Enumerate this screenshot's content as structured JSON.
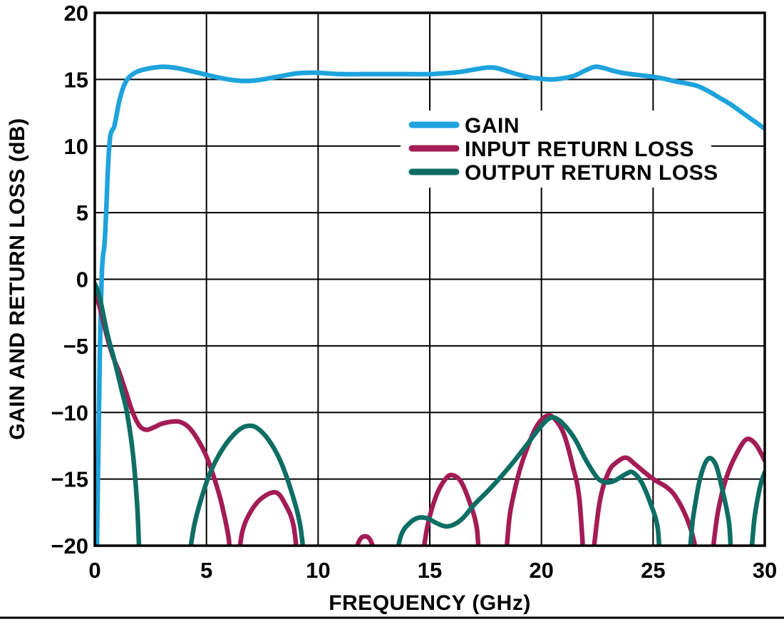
{
  "figure": {
    "background_color": "#FFFFFF",
    "axis_color": "#000000",
    "grid_color": "#000000",
    "bottom_rule_color": "#000000"
  },
  "chart_data": {
    "type": "line",
    "title": "",
    "xlabel": "FREQUENCY (GHz)",
    "ylabel": "GAIN AND RETURN LOSS (dB)",
    "xlim": [
      0,
      30
    ],
    "ylim": [
      -20,
      20
    ],
    "x_ticks": [
      0,
      5,
      10,
      15,
      20,
      25,
      30
    ],
    "x_tick_labels": [
      "0",
      "5",
      "10",
      "15",
      "20",
      "25",
      "30"
    ],
    "y_ticks": [
      20,
      15,
      10,
      5,
      0,
      -5,
      -10,
      -15,
      -20
    ],
    "y_tick_labels": [
      "20",
      "15",
      "10",
      "5",
      "0",
      "−5",
      "−10",
      "−15",
      "−20"
    ],
    "grid": true,
    "legend_position": "inside-upper-middle",
    "legend": [
      "GAIN",
      "INPUT RETURN LOSS",
      "OUTPUT RETURN LOSS"
    ],
    "series": [
      {
        "name": "GAIN",
        "color": "#1EA3DC",
        "points": [
          [
            0.1,
            -20
          ],
          [
            0.13,
            -16
          ],
          [
            0.18,
            -11
          ],
          [
            0.22,
            -6
          ],
          [
            0.27,
            -2
          ],
          [
            0.32,
            0.6
          ],
          [
            0.37,
            1.8
          ],
          [
            0.42,
            2.4
          ],
          [
            0.47,
            3.6
          ],
          [
            0.52,
            5.5
          ],
          [
            0.58,
            8
          ],
          [
            0.64,
            9.8
          ],
          [
            0.7,
            10.8
          ],
          [
            0.78,
            11.2
          ],
          [
            0.86,
            11.4
          ],
          [
            0.95,
            12.1
          ],
          [
            1.1,
            13.4
          ],
          [
            1.3,
            14.5
          ],
          [
            1.5,
            15.1
          ],
          [
            1.8,
            15.5
          ],
          [
            2.1,
            15.7
          ],
          [
            2.5,
            15.85
          ],
          [
            3,
            15.95
          ],
          [
            3.5,
            15.9
          ],
          [
            4,
            15.75
          ],
          [
            4.5,
            15.55
          ],
          [
            5,
            15.35
          ],
          [
            5.5,
            15.15
          ],
          [
            6,
            15
          ],
          [
            6.5,
            14.9
          ],
          [
            7,
            14.9
          ],
          [
            7.5,
            15
          ],
          [
            8,
            15.15
          ],
          [
            8.5,
            15.3
          ],
          [
            9,
            15.45
          ],
          [
            9.5,
            15.5
          ],
          [
            10,
            15.5
          ],
          [
            10.5,
            15.45
          ],
          [
            11,
            15.4
          ],
          [
            12,
            15.4
          ],
          [
            13,
            15.4
          ],
          [
            14,
            15.4
          ],
          [
            15,
            15.4
          ],
          [
            15.5,
            15.45
          ],
          [
            16,
            15.5
          ],
          [
            16.5,
            15.6
          ],
          [
            17,
            15.75
          ],
          [
            17.6,
            15.9
          ],
          [
            18,
            15.85
          ],
          [
            18.5,
            15.6
          ],
          [
            19,
            15.35
          ],
          [
            19.5,
            15.15
          ],
          [
            20,
            15.05
          ],
          [
            20.5,
            15
          ],
          [
            21,
            15.1
          ],
          [
            21.5,
            15.3
          ],
          [
            22,
            15.7
          ],
          [
            22.4,
            15.95
          ],
          [
            22.8,
            15.85
          ],
          [
            23.2,
            15.65
          ],
          [
            23.6,
            15.5
          ],
          [
            24,
            15.4
          ],
          [
            24.5,
            15.3
          ],
          [
            25,
            15.2
          ],
          [
            25.5,
            15.05
          ],
          [
            26,
            14.85
          ],
          [
            26.5,
            14.7
          ],
          [
            27,
            14.5
          ],
          [
            27.5,
            14.1
          ],
          [
            28,
            13.6
          ],
          [
            28.5,
            13.1
          ],
          [
            29,
            12.5
          ],
          [
            29.5,
            11.9
          ],
          [
            30,
            11.3
          ]
        ]
      },
      {
        "name": "INPUT RETURN LOSS",
        "color": "#A31C55",
        "points": [
          [
            0,
            -1
          ],
          [
            0.15,
            -1.7
          ],
          [
            0.3,
            -2.6
          ],
          [
            0.5,
            -4
          ],
          [
            0.7,
            -5.2
          ],
          [
            0.9,
            -6.2
          ],
          [
            1.1,
            -7
          ],
          [
            1.4,
            -8.5
          ],
          [
            1.7,
            -10
          ],
          [
            2,
            -11
          ],
          [
            2.3,
            -11.3
          ],
          [
            2.6,
            -11.15
          ],
          [
            3,
            -10.85
          ],
          [
            3.4,
            -10.7
          ],
          [
            3.8,
            -10.7
          ],
          [
            4.2,
            -11.1
          ],
          [
            4.6,
            -12
          ],
          [
            5,
            -13.3
          ],
          [
            5.4,
            -15.2
          ],
          [
            5.7,
            -17
          ],
          [
            6,
            -19.5
          ],
          [
            6.1,
            -22
          ],
          [
            6.35,
            -22
          ],
          [
            6.6,
            -19
          ],
          [
            7,
            -17.4
          ],
          [
            7.5,
            -16.4
          ],
          [
            8.1,
            -16
          ],
          [
            8.5,
            -16.8
          ],
          [
            8.9,
            -18.5
          ],
          [
            9.15,
            -22
          ],
          [
            9.4,
            -22.4
          ],
          [
            11.2,
            -22.4
          ],
          [
            11.45,
            -22
          ],
          [
            11.8,
            -19.8
          ],
          [
            12.1,
            -19.3
          ],
          [
            12.4,
            -19.8
          ],
          [
            12.75,
            -22
          ],
          [
            13,
            -22.4
          ],
          [
            14.3,
            -22.4
          ],
          [
            14.55,
            -22
          ],
          [
            14.9,
            -18.5
          ],
          [
            15.3,
            -16.2
          ],
          [
            15.7,
            -15
          ],
          [
            16,
            -14.7
          ],
          [
            16.4,
            -15.2
          ],
          [
            16.8,
            -16.8
          ],
          [
            17.1,
            -18.6
          ],
          [
            17.35,
            -22
          ],
          [
            18.25,
            -22
          ],
          [
            18.6,
            -17.5
          ],
          [
            19,
            -14.5
          ],
          [
            19.4,
            -12.5
          ],
          [
            19.8,
            -11
          ],
          [
            20.25,
            -10.25
          ],
          [
            20.6,
            -10.5
          ],
          [
            21,
            -11.6
          ],
          [
            21.4,
            -14
          ],
          [
            21.7,
            -16.5
          ],
          [
            21.95,
            -22
          ],
          [
            22.2,
            -22
          ],
          [
            22.6,
            -16.8
          ],
          [
            23,
            -14.5
          ],
          [
            23.4,
            -13.7
          ],
          [
            23.8,
            -13.4
          ],
          [
            24.2,
            -13.9
          ],
          [
            24.7,
            -14.6
          ],
          [
            25.1,
            -15.1
          ],
          [
            25.6,
            -15.6
          ],
          [
            26,
            -16.3
          ],
          [
            26.5,
            -17.9
          ],
          [
            26.85,
            -19.8
          ],
          [
            27,
            -22
          ],
          [
            27.5,
            -22
          ],
          [
            27.9,
            -17.5
          ],
          [
            28.3,
            -14.8
          ],
          [
            28.8,
            -12.9
          ],
          [
            29.2,
            -12
          ],
          [
            29.6,
            -12.4
          ],
          [
            30,
            -13.6
          ]
        ]
      },
      {
        "name": "OUTPUT RETURN LOSS",
        "color": "#0E6E64",
        "points": [
          [
            0,
            -0.35
          ],
          [
            0.12,
            -0.8
          ],
          [
            0.25,
            -1.6
          ],
          [
            0.4,
            -2.8
          ],
          [
            0.55,
            -4
          ],
          [
            0.7,
            -5
          ],
          [
            0.85,
            -5.9
          ],
          [
            1,
            -6.9
          ],
          [
            1.2,
            -8.3
          ],
          [
            1.44,
            -10
          ],
          [
            1.7,
            -13
          ],
          [
            1.9,
            -17
          ],
          [
            2.05,
            -22
          ],
          [
            2.3,
            -22.4
          ],
          [
            3.85,
            -22.4
          ],
          [
            4.1,
            -22
          ],
          [
            4.45,
            -18.5
          ],
          [
            4.8,
            -16.3
          ],
          [
            5.2,
            -14.4
          ],
          [
            5.7,
            -12.8
          ],
          [
            6.2,
            -11.7
          ],
          [
            6.6,
            -11.15
          ],
          [
            6.95,
            -11
          ],
          [
            7.3,
            -11.2
          ],
          [
            7.8,
            -12.1
          ],
          [
            8.3,
            -13.6
          ],
          [
            8.8,
            -15.9
          ],
          [
            9.2,
            -18.5
          ],
          [
            9.45,
            -22
          ],
          [
            9.7,
            -22.4
          ],
          [
            13.1,
            -22.4
          ],
          [
            13.35,
            -22
          ],
          [
            13.7,
            -19.3
          ],
          [
            14.1,
            -18.3
          ],
          [
            14.5,
            -17.9
          ],
          [
            14.9,
            -17.95
          ],
          [
            15.3,
            -18.3
          ],
          [
            15.7,
            -18.55
          ],
          [
            16.1,
            -18.4
          ],
          [
            16.5,
            -17.9
          ],
          [
            17,
            -16.9
          ],
          [
            17.6,
            -15.9
          ],
          [
            18.2,
            -14.8
          ],
          [
            18.8,
            -13.6
          ],
          [
            19.4,
            -12.3
          ],
          [
            19.9,
            -11.2
          ],
          [
            20.3,
            -10.5
          ],
          [
            20.6,
            -10.4
          ],
          [
            21,
            -10.9
          ],
          [
            21.5,
            -12
          ],
          [
            22,
            -13.6
          ],
          [
            22.5,
            -14.9
          ],
          [
            22.9,
            -15.25
          ],
          [
            23.3,
            -15.1
          ],
          [
            23.8,
            -14.6
          ],
          [
            24.1,
            -14.5
          ],
          [
            24.5,
            -15.3
          ],
          [
            24.9,
            -16.9
          ],
          [
            25.2,
            -18.6
          ],
          [
            25.45,
            -22
          ],
          [
            26.45,
            -22
          ],
          [
            26.8,
            -17.8
          ],
          [
            27.1,
            -15
          ],
          [
            27.45,
            -13.5
          ],
          [
            27.8,
            -13.9
          ],
          [
            28.1,
            -15.8
          ],
          [
            28.4,
            -18.3
          ],
          [
            28.6,
            -22
          ],
          [
            29.25,
            -22
          ],
          [
            29.55,
            -17.8
          ],
          [
            29.8,
            -15.5
          ],
          [
            30,
            -14.5
          ]
        ]
      }
    ]
  }
}
